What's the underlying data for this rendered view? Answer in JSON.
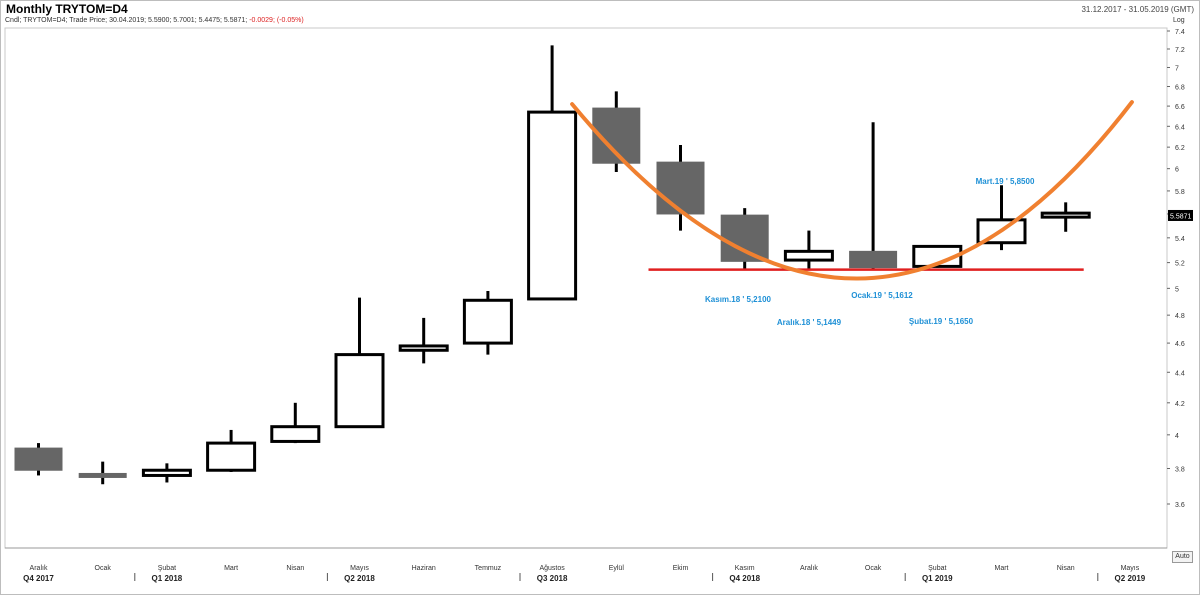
{
  "header": {
    "title": "Monthly TRYTOM=D4",
    "date_range": "31.12.2017 - 31.05.2019 (GMT)",
    "legend_text": "Cndl; TRYTOM=D4; Trade Price; 30.04.2019; 5.5900; 5.7001; 5.4475; 5.5871;",
    "legend_change": "-0.0029; (-0.05%)"
  },
  "scale_label": "Log",
  "auto_button": "Auto",
  "chart_data": {
    "type": "candlestick",
    "title": "Monthly TRYTOM=D4",
    "y_scale": "log",
    "ylim": [
      3.5,
      7.5
    ],
    "y_ticks": [
      "7.4",
      "7.2",
      "7",
      "6.8",
      "6.6",
      "6.4",
      "6.2",
      "6",
      "5.8",
      "5.6",
      "5.4",
      "5.2",
      "5",
      "4.8",
      "4.6",
      "4.4",
      "4.2",
      "4",
      "3.8",
      "3.6"
    ],
    "last_price_label": "5.5871",
    "months": [
      "Aralık",
      "Ocak",
      "Şubat",
      "Mart",
      "Nisan",
      "Mayıs",
      "Haziran",
      "Temmuz",
      "Ağustos",
      "Eylül",
      "Ekim",
      "Kasım",
      "Aralık",
      "Ocak",
      "Şubat",
      "Mart",
      "Nisan",
      "Mayıs"
    ],
    "quarters": [
      "Q4 2017",
      "Q1 2018",
      "Q2 2018",
      "Q3 2018",
      "Q4 2018",
      "Q1 2019",
      "Q2 2019"
    ],
    "candles": [
      {
        "open": 3.92,
        "high": 3.95,
        "low": 3.76,
        "close": 3.79
      },
      {
        "open": 3.77,
        "high": 3.84,
        "low": 3.71,
        "close": 3.75
      },
      {
        "open": 3.76,
        "high": 3.83,
        "low": 3.72,
        "close": 3.79
      },
      {
        "open": 3.79,
        "high": 4.03,
        "low": 3.78,
        "close": 3.95
      },
      {
        "open": 3.96,
        "high": 4.2,
        "low": 3.95,
        "close": 4.05
      },
      {
        "open": 4.05,
        "high": 4.93,
        "low": 4.05,
        "close": 4.52
      },
      {
        "open": 4.55,
        "high": 4.78,
        "low": 4.46,
        "close": 4.58
      },
      {
        "open": 4.6,
        "high": 4.98,
        "low": 4.52,
        "close": 4.91
      },
      {
        "open": 4.92,
        "high": 7.24,
        "low": 4.92,
        "close": 6.54
      },
      {
        "open": 6.58,
        "high": 6.75,
        "low": 5.97,
        "close": 6.05
      },
      {
        "open": 6.06,
        "high": 6.22,
        "low": 5.46,
        "close": 5.6
      },
      {
        "open": 5.59,
        "high": 5.65,
        "low": 5.14,
        "close": 5.21
      },
      {
        "open": 5.22,
        "high": 5.46,
        "low": 5.14,
        "close": 5.29
      },
      {
        "open": 5.29,
        "high": 6.44,
        "low": 5.15,
        "close": 5.16
      },
      {
        "open": 5.17,
        "high": 5.34,
        "low": 5.16,
        "close": 5.33
      },
      {
        "open": 5.36,
        "high": 5.85,
        "low": 5.3,
        "close": 5.55
      },
      {
        "open": 5.59,
        "high": 5.7,
        "low": 5.45,
        "close": 5.59
      }
    ],
    "support_level": 5.145,
    "annotations": [
      {
        "text": "Kasım.18 ' 5,2100"
      },
      {
        "text": "Aralık.18 ' 5,1449"
      },
      {
        "text": "Ocak.19 ' 5,1612"
      },
      {
        "text": "Şubat.19 ' 5,1650"
      },
      {
        "text": "Mart.19 ' 5,8500"
      }
    ],
    "colors": {
      "up": "#ffffff",
      "down": "#666666",
      "outline": "#000000",
      "support": "#e02020",
      "curve": "#f08030",
      "annotation": "#1e90d6"
    }
  }
}
